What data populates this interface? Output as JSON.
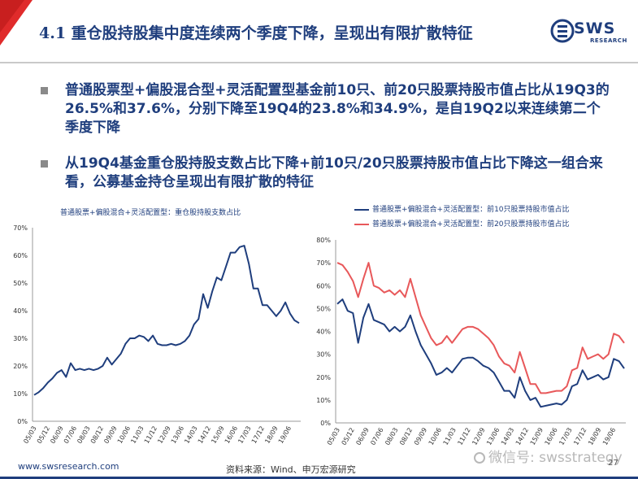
{
  "header": {
    "title": "4.1 重仓股持股集中度连续两个季度下降，呈现出有限扩散特征",
    "logo_main": "SWS",
    "logo_sub": "RESEARCH"
  },
  "bullets": [
    "普通股票型+偏股混合型+灵活配置型基金前10只、前20只股票持股市值占比从19Q3的26.5%和37.6%，分别下降至19Q4的23.8%和34.9%，是自19Q2以来连续第二个季度下降",
    "从19Q4基金重仓股持股支数占比下降+前10只/20只股票持股市值占比下降这一组合来看，公募基金持仓呈现出有限扩散的特征"
  ],
  "footer": {
    "url": "www.swsresearch.com",
    "source": "资料来源：Wind、申万宏源研究",
    "page": "27",
    "watermark": "微信号: swsstrategy"
  },
  "chart_data": [
    {
      "type": "line",
      "title": "普通股票+偏股混合+灵活配置型：重仓股持股支数占比",
      "x_ticks": [
        "05/03",
        "05/12",
        "06/09",
        "07/06",
        "08/03",
        "08/12",
        "09/09",
        "10/06",
        "11/03",
        "11/12",
        "12/09",
        "13/06",
        "14/03",
        "14/12",
        "15/09",
        "16/06",
        "17/03",
        "17/12",
        "18/09",
        "19/06"
      ],
      "ylim": [
        0,
        70
      ],
      "y_ticks": [
        "0%",
        "10%",
        "20%",
        "30%",
        "40%",
        "50%",
        "60%",
        "70%"
      ],
      "series": [
        {
          "name": "",
          "color": "#1f3e7d",
          "values": [
            9.5,
            10.5,
            12,
            14,
            15.5,
            17.5,
            18.5,
            16,
            21,
            18.5,
            19,
            18.5,
            19,
            18.5,
            19,
            20,
            23,
            20.5,
            22.5,
            24.5,
            28,
            30,
            30,
            31,
            30.5,
            29,
            31,
            28,
            27.5,
            27.5,
            28,
            27.5,
            28,
            29,
            31,
            35,
            37,
            46,
            41,
            47,
            52,
            51,
            56,
            61,
            61,
            63,
            63.5,
            57,
            48,
            48,
            42,
            42,
            40,
            38,
            40,
            43,
            39,
            36.5,
            35.5
          ]
        }
      ]
    },
    {
      "type": "line",
      "title": "",
      "x_ticks": [
        "05/03",
        "05/12",
        "06/09",
        "07/06",
        "08/03",
        "08/12",
        "09/09",
        "10/06",
        "11/03",
        "11/12",
        "12/09",
        "13/06",
        "14/03",
        "14/12",
        "15/09",
        "16/06",
        "17/03",
        "17/12",
        "18/09",
        "19/06"
      ],
      "ylim": [
        0,
        80
      ],
      "y_ticks": [
        "0%",
        "10%",
        "20%",
        "30%",
        "40%",
        "50%",
        "60%",
        "70%",
        "80%"
      ],
      "series": [
        {
          "name": "普通股票+偏股混合+灵活配置型：前10只股票持股市值占比",
          "color": "#1f3e7d",
          "values": [
            52,
            54,
            49,
            48,
            35,
            46,
            52,
            45,
            44,
            43,
            40,
            42,
            40,
            42,
            47,
            40,
            34,
            30,
            26,
            21,
            22,
            24,
            22,
            25,
            28,
            28.5,
            28.5,
            27,
            25,
            24,
            22,
            18,
            14,
            14,
            11,
            20,
            14,
            10,
            11,
            7,
            7.5,
            8,
            8.5,
            8,
            10,
            16,
            17,
            23,
            19,
            20,
            21,
            19,
            20,
            28,
            27,
            23.8
          ]
        },
        {
          "name": "普通股票+偏股混合+灵活配置型：前20只股票持股市值占比",
          "color": "#e8585a",
          "values": [
            70,
            69,
            66,
            62,
            55,
            63,
            70,
            60,
            59,
            57,
            58,
            56,
            58,
            55,
            63,
            55,
            47,
            42,
            37,
            34,
            35,
            38,
            35,
            38,
            41,
            42,
            42,
            41,
            39,
            37,
            34,
            29,
            26,
            25,
            22,
            31,
            24,
            17,
            17,
            13,
            13,
            13.5,
            14,
            14,
            16,
            23,
            24,
            33,
            28,
            29,
            30,
            28,
            30,
            39,
            38,
            34.9
          ]
        }
      ]
    }
  ]
}
